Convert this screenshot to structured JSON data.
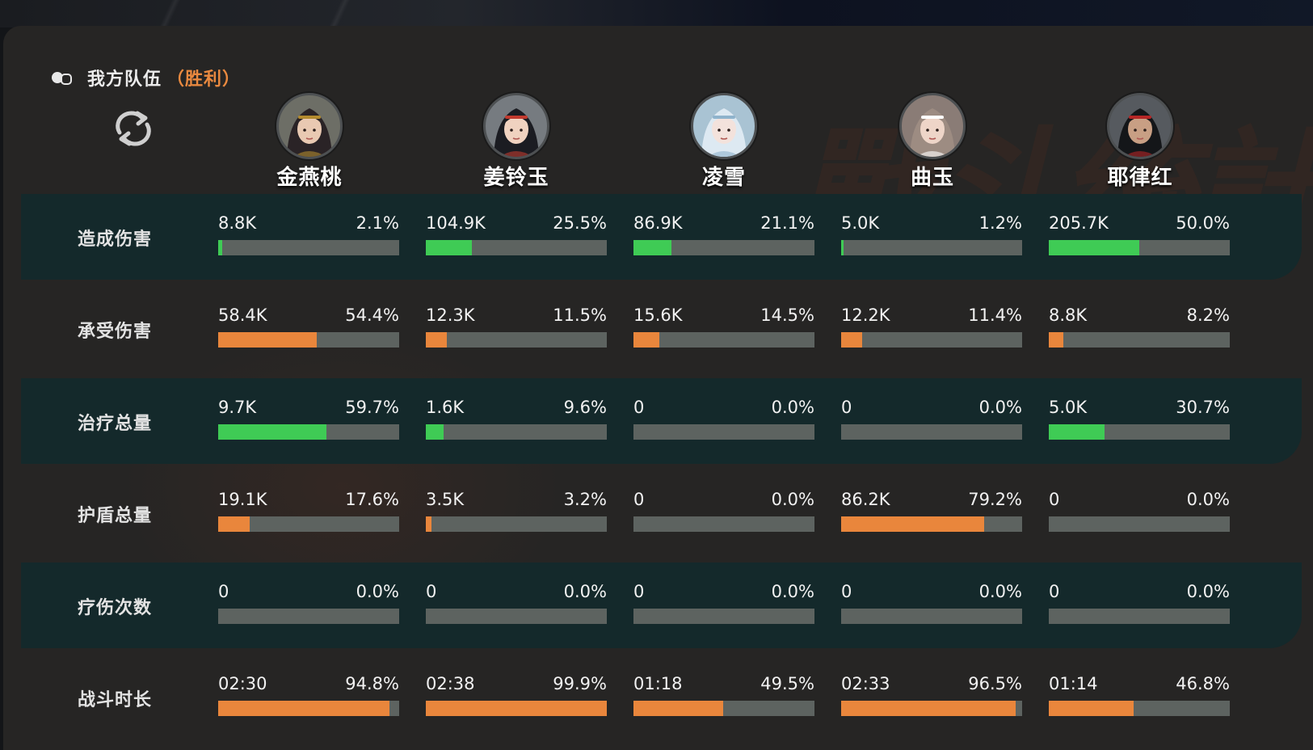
{
  "team": {
    "title": "我方队伍",
    "result": "（胜利）"
  },
  "heroes": [
    {
      "name": "金燕桃"
    },
    {
      "name": "姜铃玉"
    },
    {
      "name": "凌雪"
    },
    {
      "name": "曲玉"
    },
    {
      "name": "耶律红"
    }
  ],
  "colors": {
    "green": "#3fcb55",
    "orange": "#e9863c",
    "track": "#5d6360",
    "teal_row": "#14292b",
    "accent": "#e9893f"
  },
  "stats": [
    {
      "label": "造成伤害",
      "color": "green",
      "cells": [
        {
          "value": "8.8K",
          "pct": "2.1%",
          "fill": 0.021
        },
        {
          "value": "104.9K",
          "pct": "25.5%",
          "fill": 0.255
        },
        {
          "value": "86.9K",
          "pct": "21.1%",
          "fill": 0.211
        },
        {
          "value": "5.0K",
          "pct": "1.2%",
          "fill": 0.012
        },
        {
          "value": "205.7K",
          "pct": "50.0%",
          "fill": 0.5
        }
      ]
    },
    {
      "label": "承受伤害",
      "color": "orange",
      "cells": [
        {
          "value": "58.4K",
          "pct": "54.4%",
          "fill": 0.544
        },
        {
          "value": "12.3K",
          "pct": "11.5%",
          "fill": 0.115
        },
        {
          "value": "15.6K",
          "pct": "14.5%",
          "fill": 0.145
        },
        {
          "value": "12.2K",
          "pct": "11.4%",
          "fill": 0.114
        },
        {
          "value": "8.8K",
          "pct": "8.2%",
          "fill": 0.082
        }
      ]
    },
    {
      "label": "治疗总量",
      "color": "green",
      "cells": [
        {
          "value": "9.7K",
          "pct": "59.7%",
          "fill": 0.597
        },
        {
          "value": "1.6K",
          "pct": "9.6%",
          "fill": 0.096
        },
        {
          "value": "0",
          "pct": "0.0%",
          "fill": 0
        },
        {
          "value": "0",
          "pct": "0.0%",
          "fill": 0
        },
        {
          "value": "5.0K",
          "pct": "30.7%",
          "fill": 0.307
        }
      ]
    },
    {
      "label": "护盾总量",
      "color": "orange",
      "cells": [
        {
          "value": "19.1K",
          "pct": "17.6%",
          "fill": 0.176
        },
        {
          "value": "3.5K",
          "pct": "3.2%",
          "fill": 0.032
        },
        {
          "value": "0",
          "pct": "0.0%",
          "fill": 0
        },
        {
          "value": "86.2K",
          "pct": "79.2%",
          "fill": 0.792
        },
        {
          "value": "0",
          "pct": "0.0%",
          "fill": 0
        }
      ]
    },
    {
      "label": "疗伤次数",
      "color": "green",
      "cells": [
        {
          "value": "0",
          "pct": "0.0%",
          "fill": 0
        },
        {
          "value": "0",
          "pct": "0.0%",
          "fill": 0
        },
        {
          "value": "0",
          "pct": "0.0%",
          "fill": 0
        },
        {
          "value": "0",
          "pct": "0.0%",
          "fill": 0
        },
        {
          "value": "0",
          "pct": "0.0%",
          "fill": 0
        }
      ]
    },
    {
      "label": "战斗时长",
      "color": "orange",
      "cells": [
        {
          "value": "02:30",
          "pct": "94.8%",
          "fill": 0.948
        },
        {
          "value": "02:38",
          "pct": "99.9%",
          "fill": 0.999
        },
        {
          "value": "01:18",
          "pct": "49.5%",
          "fill": 0.495
        },
        {
          "value": "02:33",
          "pct": "96.5%",
          "fill": 0.965
        },
        {
          "value": "01:14",
          "pct": "46.8%",
          "fill": 0.468
        }
      ]
    }
  ]
}
